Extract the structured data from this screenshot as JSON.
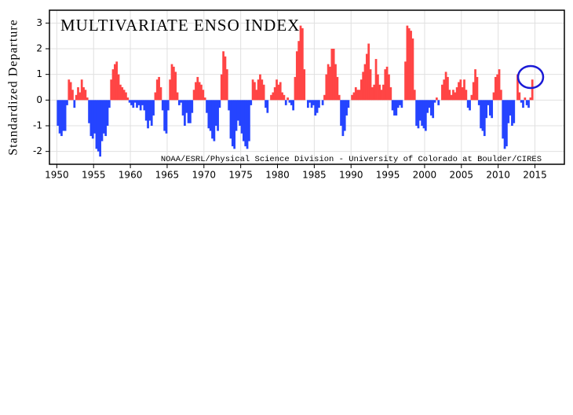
{
  "chart_data": {
    "type": "signed-area",
    "title": "MULTIVARIATE ENSO INDEX",
    "y_label": "Standardized Departure",
    "annotation": "NOAA/ESRL/Physical Science Division - University of Colorado at Boulder/CIRES",
    "positive_color": "#ff4545",
    "negative_color": "#2544ff",
    "grid": true,
    "xlim": [
      1949,
      2019
    ],
    "ylim": [
      -2.5,
      3.5
    ],
    "xticks": [
      1950,
      1955,
      1960,
      1965,
      1970,
      1975,
      1980,
      1985,
      1990,
      1995,
      2000,
      2005,
      2010,
      2015
    ],
    "yticks": [
      -2,
      -1,
      0,
      1,
      2,
      3
    ],
    "x": [
      1950,
      1950.25,
      1950.5,
      1950.75,
      1951,
      1951.25,
      1951.5,
      1951.75,
      1952,
      1952.25,
      1952.5,
      1952.75,
      1953,
      1953.25,
      1953.5,
      1953.75,
      1954,
      1954.25,
      1954.5,
      1954.75,
      1955,
      1955.25,
      1955.5,
      1955.75,
      1956,
      1956.25,
      1956.5,
      1956.75,
      1957,
      1957.25,
      1957.5,
      1957.75,
      1958,
      1958.25,
      1958.5,
      1958.75,
      1959,
      1959.25,
      1959.5,
      1959.75,
      1960,
      1960.25,
      1960.5,
      1960.75,
      1961,
      1961.25,
      1961.5,
      1961.75,
      1962,
      1962.25,
      1962.5,
      1962.75,
      1963,
      1963.25,
      1963.5,
      1963.75,
      1964,
      1964.25,
      1964.5,
      1964.75,
      1965,
      1965.25,
      1965.5,
      1965.75,
      1966,
      1966.25,
      1966.5,
      1966.75,
      1967,
      1967.25,
      1967.5,
      1967.75,
      1968,
      1968.25,
      1968.5,
      1968.75,
      1969,
      1969.25,
      1969.5,
      1969.75,
      1970,
      1970.25,
      1970.5,
      1970.75,
      1971,
      1971.25,
      1971.5,
      1971.75,
      1972,
      1972.25,
      1972.5,
      1972.75,
      1973,
      1973.25,
      1973.5,
      1973.75,
      1974,
      1974.25,
      1974.5,
      1974.75,
      1975,
      1975.25,
      1975.5,
      1975.75,
      1976,
      1976.25,
      1976.5,
      1976.75,
      1977,
      1977.25,
      1977.5,
      1977.75,
      1978,
      1978.25,
      1978.5,
      1978.75,
      1979,
      1979.25,
      1979.5,
      1979.75,
      1980,
      1980.25,
      1980.5,
      1980.75,
      1981,
      1981.25,
      1981.5,
      1981.75,
      1982,
      1982.25,
      1982.5,
      1982.75,
      1983,
      1983.25,
      1983.5,
      1983.75,
      1984,
      1984.25,
      1984.5,
      1984.75,
      1985,
      1985.25,
      1985.5,
      1985.75,
      1986,
      1986.25,
      1986.5,
      1986.75,
      1987,
      1987.25,
      1987.5,
      1987.75,
      1988,
      1988.25,
      1988.5,
      1988.75,
      1989,
      1989.25,
      1989.5,
      1989.75,
      1990,
      1990.25,
      1990.5,
      1990.75,
      1991,
      1991.25,
      1991.5,
      1991.75,
      1992,
      1992.25,
      1992.5,
      1992.75,
      1993,
      1993.25,
      1993.5,
      1993.75,
      1994,
      1994.25,
      1994.5,
      1994.75,
      1995,
      1995.25,
      1995.5,
      1995.75,
      1996,
      1996.25,
      1996.5,
      1996.75,
      1997,
      1997.25,
      1997.5,
      1997.75,
      1998,
      1998.25,
      1998.5,
      1998.75,
      1999,
      1999.25,
      1999.5,
      1999.75,
      2000,
      2000.25,
      2000.5,
      2000.75,
      2001,
      2001.25,
      2001.5,
      2001.75,
      2002,
      2002.25,
      2002.5,
      2002.75,
      2003,
      2003.25,
      2003.5,
      2003.75,
      2004,
      2004.25,
      2004.5,
      2004.75,
      2005,
      2005.25,
      2005.5,
      2005.75,
      2006,
      2006.25,
      2006.5,
      2006.75,
      2007,
      2007.25,
      2007.5,
      2007.75,
      2008,
      2008.25,
      2008.5,
      2008.75,
      2009,
      2009.25,
      2009.5,
      2009.75,
      2010,
      2010.25,
      2010.5,
      2010.75,
      2011,
      2011.25,
      2011.5,
      2011.75,
      2012,
      2012.25,
      2012.5,
      2012.75,
      2013,
      2013.25,
      2013.5,
      2013.75,
      2014,
      2014.25,
      2014.5
    ],
    "values": [
      -1.0,
      -1.3,
      -1.4,
      -1.2,
      -1.2,
      -0.2,
      0.8,
      0.7,
      0.4,
      -0.3,
      0.2,
      0.5,
      0.3,
      0.8,
      0.5,
      0.4,
      0.1,
      -0.9,
      -1.4,
      -1.5,
      -1.3,
      -1.9,
      -2.0,
      -2.2,
      -1.6,
      -1.3,
      -1.4,
      -1.0,
      -0.3,
      0.8,
      1.2,
      1.4,
      1.5,
      1.0,
      0.6,
      0.5,
      0.4,
      0.3,
      0.1,
      -0.1,
      -0.2,
      -0.3,
      -0.1,
      -0.3,
      -0.2,
      -0.4,
      -0.2,
      -0.4,
      -0.8,
      -1.1,
      -0.8,
      -1.0,
      -0.6,
      0.3,
      0.8,
      0.9,
      0.5,
      -0.4,
      -1.2,
      -1.3,
      -0.4,
      0.8,
      1.4,
      1.3,
      1.1,
      0.3,
      -0.2,
      -0.1,
      -0.6,
      -1.0,
      -0.5,
      -0.9,
      -0.9,
      -0.5,
      0.4,
      0.7,
      0.9,
      0.7,
      0.6,
      0.4,
      0.1,
      -0.5,
      -1.1,
      -1.2,
      -1.5,
      -1.6,
      -1.0,
      -1.2,
      -0.3,
      1.0,
      1.9,
      1.7,
      1.2,
      -0.4,
      -1.5,
      -1.8,
      -1.9,
      -1.2,
      -0.8,
      -1.0,
      -1.3,
      -1.6,
      -1.8,
      -1.9,
      -1.6,
      -0.2,
      0.8,
      0.7,
      0.4,
      0.8,
      1.0,
      0.8,
      0.6,
      -0.3,
      -0.5,
      0.0,
      0.2,
      0.3,
      0.5,
      0.8,
      0.6,
      0.7,
      0.3,
      0.2,
      -0.2,
      0.1,
      -0.1,
      -0.2,
      -0.4,
      0.9,
      1.9,
      2.3,
      2.9,
      2.8,
      1.2,
      0.0,
      -0.3,
      -0.1,
      -0.3,
      -0.2,
      -0.6,
      -0.5,
      -0.3,
      0.0,
      -0.2,
      0.2,
      1.0,
      1.4,
      1.3,
      2.0,
      2.0,
      1.4,
      0.9,
      0.2,
      -1.0,
      -1.4,
      -1.2,
      -0.6,
      -0.3,
      0.0,
      0.2,
      0.3,
      0.5,
      0.4,
      0.4,
      0.8,
      1.1,
      1.4,
      1.8,
      2.2,
      1.2,
      0.5,
      0.6,
      1.6,
      1.0,
      0.6,
      0.4,
      0.6,
      1.2,
      1.3,
      1.0,
      0.5,
      -0.4,
      -0.6,
      -0.6,
      -0.3,
      -0.2,
      -0.3,
      0.0,
      1.5,
      2.9,
      2.8,
      2.7,
      2.4,
      0.4,
      -1.0,
      -1.1,
      -0.8,
      -1.0,
      -1.1,
      -1.2,
      -0.5,
      -0.3,
      -0.6,
      -0.7,
      -0.1,
      0.1,
      -0.2,
      0.0,
      0.6,
      0.8,
      1.1,
      0.9,
      0.4,
      0.2,
      0.4,
      0.3,
      0.5,
      0.7,
      0.8,
      0.5,
      0.8,
      0.4,
      -0.3,
      -0.4,
      0.2,
      0.7,
      1.2,
      0.9,
      -0.2,
      -1.1,
      -1.2,
      -1.4,
      -0.7,
      -0.2,
      -0.6,
      -0.7,
      0.3,
      0.9,
      1.0,
      1.2,
      0.4,
      -1.5,
      -1.9,
      -1.8,
      -0.9,
      -0.6,
      -1.0,
      -0.9,
      0.0,
      1.0,
      0.3,
      -0.1,
      -0.3,
      0.1,
      -0.2,
      -0.3,
      0.1,
      0.8
    ]
  }
}
